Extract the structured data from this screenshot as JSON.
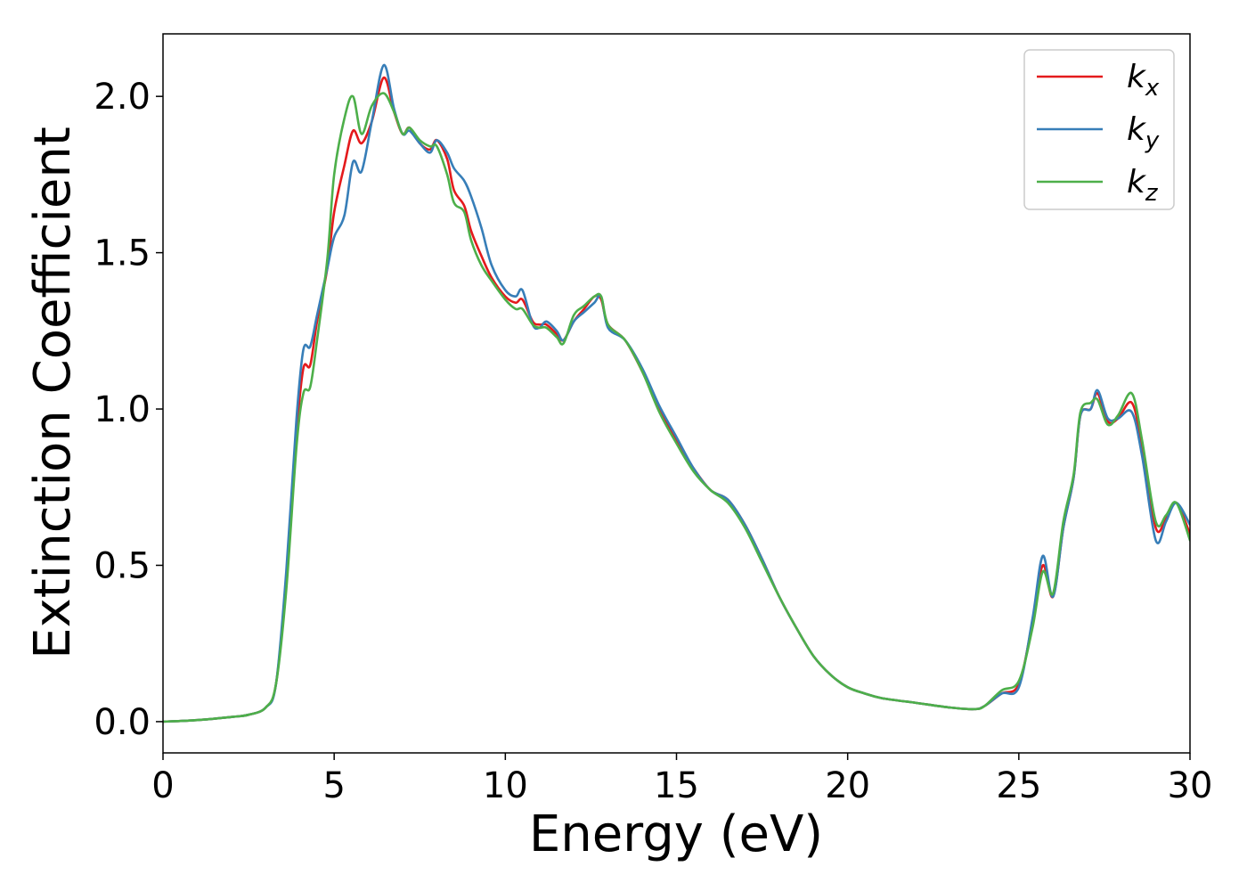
{
  "chart_data": {
    "type": "line",
    "title": "",
    "xlabel": "Energy (eV)",
    "ylabel": "Extinction Coefficient",
    "xlim": [
      0,
      30
    ],
    "ylim": [
      -0.1,
      2.2
    ],
    "xticks": [
      0,
      5,
      10,
      15,
      20,
      25,
      30
    ],
    "xtick_labels": [
      "0",
      "5",
      "10",
      "15",
      "20",
      "25",
      "30"
    ],
    "yticks": [
      0.0,
      0.5,
      1.0,
      1.5,
      2.0
    ],
    "ytick_labels": [
      "0.0",
      "0.5",
      "1.0",
      "1.5",
      "2.0"
    ],
    "grid": false,
    "legend_position": "top-right",
    "x": [
      0,
      1,
      2,
      2.5,
      3,
      3.3,
      3.6,
      3.9,
      4.1,
      4.3,
      4.5,
      4.8,
      5.0,
      5.3,
      5.55,
      5.8,
      6.1,
      6.45,
      6.75,
      7.0,
      7.2,
      7.5,
      7.8,
      8.0,
      8.3,
      8.5,
      8.8,
      9.0,
      9.3,
      9.6,
      10.0,
      10.3,
      10.5,
      10.8,
      11.0,
      11.2,
      11.5,
      11.7,
      12.0,
      12.3,
      12.6,
      12.8,
      13.0,
      13.5,
      14.0,
      14.5,
      15.0,
      15.5,
      16.0,
      16.5,
      17.0,
      17.5,
      18.0,
      18.5,
      19.0,
      19.5,
      20.0,
      20.5,
      21.0,
      22.0,
      23.0,
      23.7,
      24.0,
      24.5,
      25.0,
      25.4,
      25.7,
      26.0,
      26.3,
      26.6,
      26.8,
      27.1,
      27.3,
      27.6,
      27.9,
      28.3,
      28.6,
      29.0,
      29.3,
      29.6,
      30.0
    ],
    "series": [
      {
        "name": "k_x",
        "label_base": "k",
        "label_sub": "x",
        "color": "#e41a1c",
        "values": [
          0.0,
          0.005,
          0.015,
          0.022,
          0.045,
          0.12,
          0.45,
          0.92,
          1.13,
          1.14,
          1.28,
          1.45,
          1.63,
          1.78,
          1.89,
          1.85,
          1.92,
          2.06,
          1.95,
          1.88,
          1.9,
          1.85,
          1.83,
          1.86,
          1.8,
          1.7,
          1.65,
          1.57,
          1.49,
          1.42,
          1.36,
          1.34,
          1.35,
          1.28,
          1.27,
          1.27,
          1.24,
          1.22,
          1.28,
          1.32,
          1.36,
          1.35,
          1.27,
          1.22,
          1.12,
          1.0,
          0.9,
          0.81,
          0.74,
          0.71,
          0.63,
          0.52,
          0.4,
          0.3,
          0.21,
          0.15,
          0.11,
          0.09,
          0.075,
          0.06,
          0.045,
          0.04,
          0.05,
          0.09,
          0.12,
          0.32,
          0.5,
          0.4,
          0.62,
          0.78,
          0.98,
          1.0,
          1.05,
          0.96,
          0.97,
          1.02,
          0.88,
          0.62,
          0.65,
          0.7,
          0.6
        ]
      },
      {
        "name": "k_y",
        "label_base": "k",
        "label_sub": "y",
        "color": "#377eb8",
        "values": [
          0.0,
          0.005,
          0.015,
          0.022,
          0.045,
          0.12,
          0.48,
          0.97,
          1.19,
          1.2,
          1.3,
          1.45,
          1.55,
          1.62,
          1.79,
          1.76,
          1.92,
          2.1,
          1.96,
          1.88,
          1.89,
          1.85,
          1.82,
          1.86,
          1.82,
          1.77,
          1.73,
          1.68,
          1.58,
          1.46,
          1.38,
          1.36,
          1.38,
          1.27,
          1.26,
          1.28,
          1.25,
          1.22,
          1.28,
          1.31,
          1.34,
          1.36,
          1.26,
          1.22,
          1.13,
          1.01,
          0.91,
          0.81,
          0.74,
          0.71,
          0.63,
          0.52,
          0.4,
          0.3,
          0.21,
          0.15,
          0.11,
          0.09,
          0.075,
          0.06,
          0.045,
          0.04,
          0.05,
          0.09,
          0.11,
          0.33,
          0.53,
          0.4,
          0.62,
          0.78,
          0.98,
          1.0,
          1.06,
          0.97,
          0.97,
          0.99,
          0.85,
          0.58,
          0.64,
          0.7,
          0.63
        ]
      },
      {
        "name": "k_z",
        "label_base": "k",
        "label_sub": "z",
        "color": "#4daf4a",
        "values": [
          0.0,
          0.005,
          0.015,
          0.022,
          0.045,
          0.12,
          0.42,
          0.88,
          1.05,
          1.07,
          1.22,
          1.48,
          1.75,
          1.93,
          2.0,
          1.88,
          1.97,
          2.01,
          1.95,
          1.88,
          1.9,
          1.86,
          1.84,
          1.84,
          1.75,
          1.66,
          1.63,
          1.54,
          1.46,
          1.41,
          1.35,
          1.32,
          1.32,
          1.27,
          1.26,
          1.26,
          1.23,
          1.21,
          1.3,
          1.33,
          1.36,
          1.36,
          1.27,
          1.22,
          1.12,
          0.99,
          0.89,
          0.8,
          0.74,
          0.7,
          0.62,
          0.51,
          0.4,
          0.3,
          0.21,
          0.15,
          0.11,
          0.09,
          0.075,
          0.06,
          0.045,
          0.04,
          0.05,
          0.1,
          0.13,
          0.3,
          0.48,
          0.41,
          0.64,
          0.79,
          0.99,
          1.02,
          1.03,
          0.95,
          0.98,
          1.05,
          0.9,
          0.64,
          0.66,
          0.7,
          0.58
        ]
      }
    ]
  }
}
